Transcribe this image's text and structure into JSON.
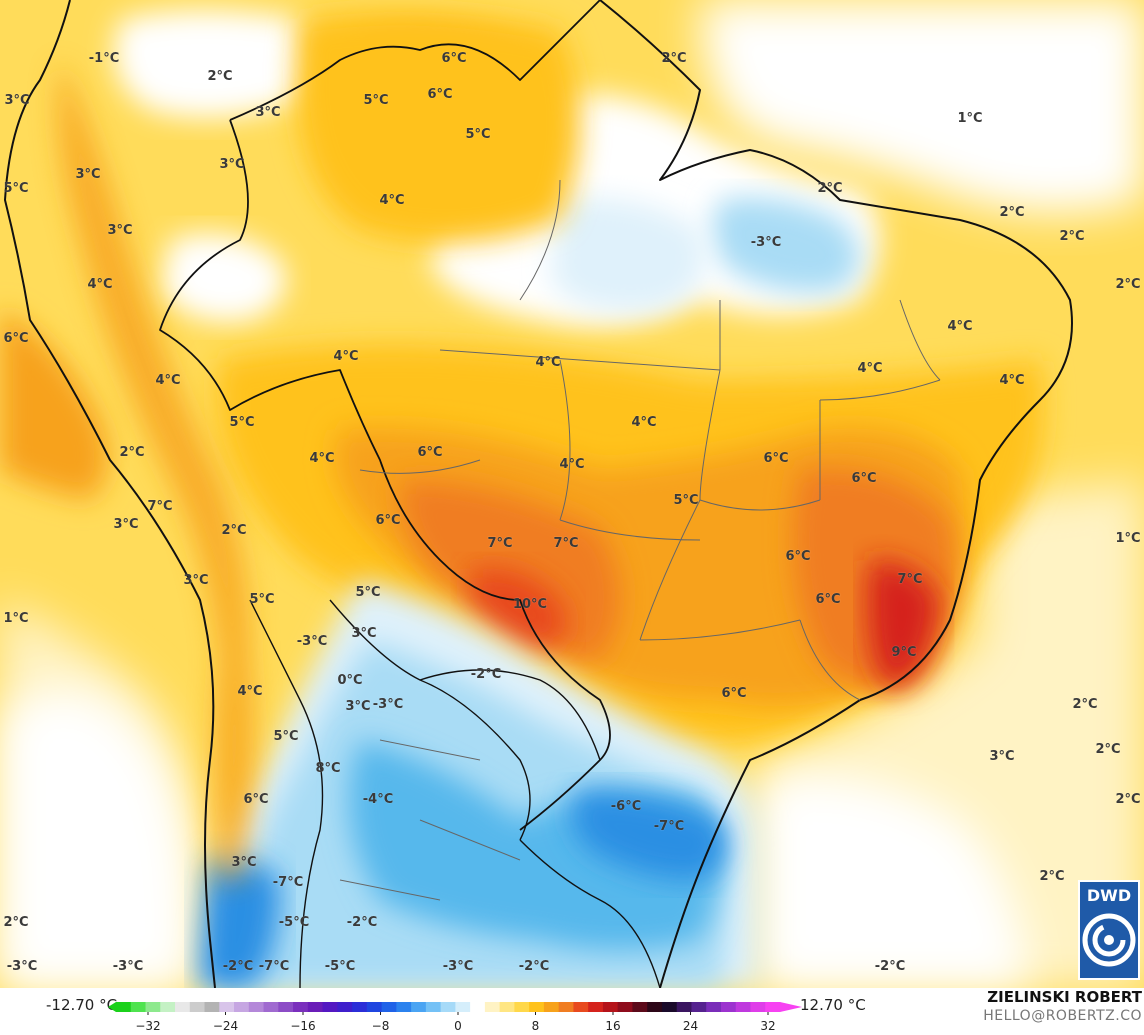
{
  "map": {
    "colors": {
      "ocean_light": "#fff3c4",
      "yellow": "#ffd84a",
      "gold": "#ffc21c",
      "orange": "#f7a21b",
      "deep_orange": "#f07d22",
      "red_orange": "#e84a1f",
      "red": "#d5231c",
      "white": "#ffffff",
      "pale_blue": "#dff1fb",
      "light_blue": "#a9dcf5",
      "mid_blue": "#56b8ec",
      "blue": "#2b8fe3",
      "border": "#111111",
      "state_border": "#666666"
    },
    "labels": [
      "-1°C",
      "2°C",
      "3°C",
      "3°C",
      "3°C",
      "5°C",
      "6°C",
      "6°C",
      "5°C",
      "2°C",
      "1°C",
      "3°C",
      "4°C",
      "5°C",
      "3°C",
      "2°C",
      "-3°C",
      "2°C",
      "2°C",
      "4°C",
      "2°C",
      "6°C",
      "4°C",
      "4°C",
      "4°C",
      "4°C",
      "4°C",
      "4°C",
      "5°C",
      "4°C",
      "6°C",
      "6°C",
      "4°C",
      "6°C",
      "2°C",
      "4°C",
      "7°C",
      "5°C",
      "3°C",
      "7°C",
      "6°C",
      "2°C",
      "1°C",
      "3°C",
      "7°C",
      "10°C",
      "6°C",
      "1°C",
      "5°C",
      "5°C",
      "2°C",
      "3°C",
      "7°C",
      "-3°C",
      "6°C",
      "-2°C",
      "9°C",
      "0°C",
      "-3°C",
      "4°C",
      "6°C",
      "2°C",
      "2°C",
      "5°C",
      "3°C",
      "2°C",
      "8°C",
      "-4°C",
      "6°C",
      "-6°C",
      "2°C",
      "-7°C",
      "3°C",
      "3°C",
      "-7°C",
      "-2°C",
      "-5°C",
      "-2°C",
      "-3°C",
      "-7°C",
      "-5°C",
      "-3°C",
      "-2°C",
      "-2°C",
      "-3°C"
    ]
  },
  "legend": {
    "min_label": "-12.70 °C",
    "max_label": "12.70 °C",
    "ticks": [
      "−32",
      "−24",
      "−16",
      "−8",
      "0",
      "8",
      "16",
      "24",
      "32"
    ],
    "colors": [
      "#1bd11b",
      "#4fe34f",
      "#8de98d",
      "#c4f1c4",
      "#e8e8e8",
      "#cccccc",
      "#b3b3b3",
      "#d8c4ea",
      "#c6a6e2",
      "#b488d9",
      "#a06ad0",
      "#8c4cc6",
      "#7a2fbd",
      "#6a1db8",
      "#5418c2",
      "#3f1fcc",
      "#2b2ed8",
      "#1f45e0",
      "#1f62e8",
      "#2b82ee",
      "#4aa4f3",
      "#74c1f6",
      "#a6daf8",
      "#d5eefb",
      "#ffffff",
      "#fff3c4",
      "#ffe683",
      "#ffd84a",
      "#ffc21c",
      "#f7a21b",
      "#f07d22",
      "#e84a1f",
      "#d5231c",
      "#b5131a",
      "#8e0c1c",
      "#5c0a1a",
      "#2d0718",
      "#1a0a2a",
      "#3a1560",
      "#55228f",
      "#7a2db9",
      "#9c33cf",
      "#bf39de",
      "#df3ee9",
      "#f742f2"
    ]
  },
  "author": {
    "name": "ZIELINSKI ROBERT",
    "email": "HELLO@ROBERTZ.CO"
  },
  "logo": {
    "text": "DWD"
  }
}
